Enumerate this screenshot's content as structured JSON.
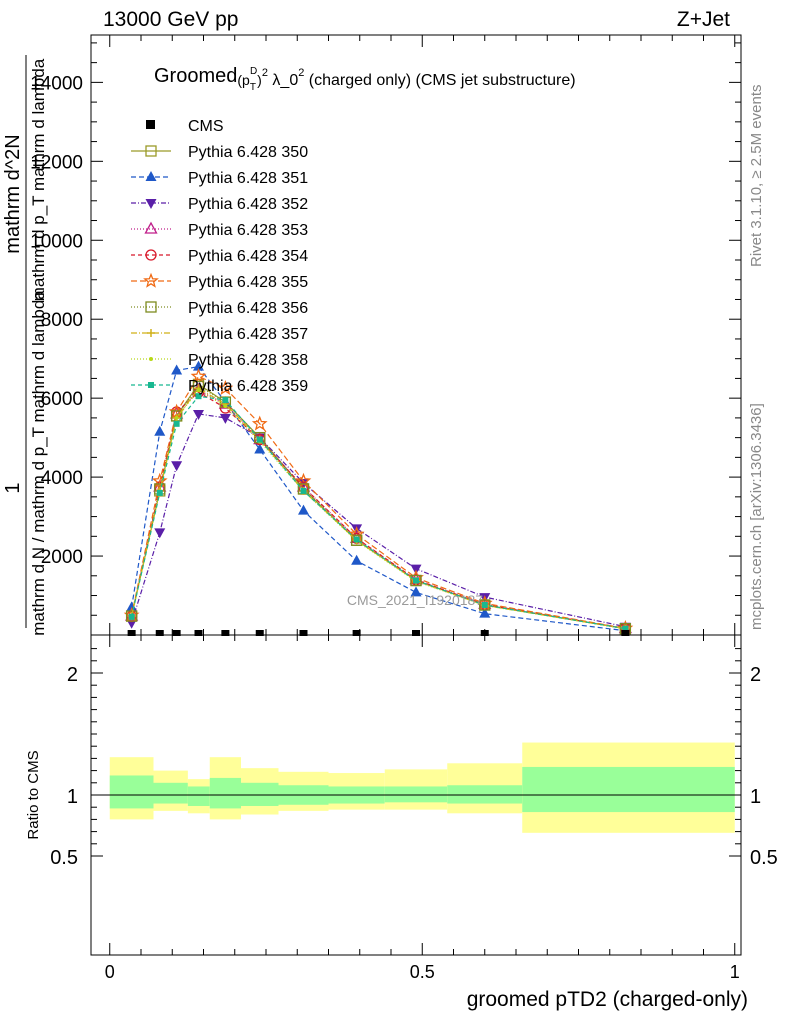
{
  "header": {
    "left": "13000 GeV pp",
    "right": "Z+Jet"
  },
  "side_labels": {
    "rivet": "Rivet 3.1.10, ≥ 2.5M events",
    "mcplots": "mcplots.cern.ch [arXiv:1306.3436]"
  },
  "watermark": "CMS_2021_I1920187",
  "chart_data": {
    "type": "line",
    "title": "Groomed (p_T^D)^2 λ_0^2  (charged only) (CMS jet substructure)",
    "title_parts": {
      "main": "Groomed",
      "p": "(p",
      "sub_T": "T",
      "sup_D": "D",
      "close": ")",
      "sup_2": "2",
      "lam": " λ_0",
      "sup_2b": "2",
      "rest": "  (charged only) (CMS jet substructure)"
    },
    "xlabel": "groomed pTD2 (charged-only)",
    "ylabel_upper_lines": [
      "1",
      "mathrm d N / mathrm d p_T mathrm d lambda",
      "mathrm d^2N",
      "mathrm d p_T mathrm d lambda"
    ],
    "ylabel_ratio": "Ratio to CMS",
    "xlim": [
      -0.03,
      1.01
    ],
    "ylim": [
      0,
      15200
    ],
    "ratio_ylim": [
      0.4,
      2.3
    ],
    "x_ticks": [
      {
        "value": 0,
        "label": "0"
      },
      {
        "value": 0.5,
        "label": "0.5"
      },
      {
        "value": 1,
        "label": "1"
      }
    ],
    "y_ticks": [
      {
        "value": 2000,
        "label": "2000"
      },
      {
        "value": 4000,
        "label": "4000"
      },
      {
        "value": 6000,
        "label": "6000"
      },
      {
        "value": 8000,
        "label": "8000"
      },
      {
        "value": 10000,
        "label": "10000"
      },
      {
        "value": 12000,
        "label": "12000"
      },
      {
        "value": 14000,
        "label": "14000"
      }
    ],
    "ratio_ticks": [
      {
        "value": 0.5,
        "label": "0.5"
      },
      {
        "value": 1,
        "label": "1"
      },
      {
        "value": 2,
        "label": "2"
      }
    ],
    "x": [
      0.035,
      0.08,
      0.107,
      0.142,
      0.185,
      0.24,
      0.31,
      0.395,
      0.49,
      0.6,
      0.825
    ],
    "bin_edges": [
      0.0,
      0.07,
      0.09,
      0.125,
      0.16,
      0.21,
      0.27,
      0.35,
      0.44,
      0.54,
      0.66,
      1.0
    ],
    "cms": {
      "name": "CMS",
      "values": [
        0,
        0,
        0,
        0,
        0,
        0,
        0,
        0,
        0,
        0,
        0
      ],
      "ratio_band_inner": [
        [
          0.89,
          1.16
        ],
        [
          0.93,
          1.1
        ],
        [
          0.93,
          1.1
        ],
        [
          0.91,
          1.07
        ],
        [
          0.89,
          1.14
        ],
        [
          0.91,
          1.1
        ],
        [
          0.92,
          1.08
        ],
        [
          0.93,
          1.07
        ],
        [
          0.94,
          1.07
        ],
        [
          0.93,
          1.08
        ],
        [
          0.86,
          1.23
        ]
      ],
      "ratio_band_outer": [
        [
          0.8,
          1.31
        ],
        [
          0.87,
          1.2
        ],
        [
          0.87,
          1.2
        ],
        [
          0.85,
          1.13
        ],
        [
          0.8,
          1.31
        ],
        [
          0.84,
          1.22
        ],
        [
          0.87,
          1.19
        ],
        [
          0.88,
          1.18
        ],
        [
          0.88,
          1.21
        ],
        [
          0.85,
          1.26
        ],
        [
          0.69,
          1.43
        ]
      ]
    },
    "legend_position": "top-left",
    "series": [
      {
        "name": "Pythia 6.428 350",
        "color": "#9a9a28",
        "dash": "",
        "marker": "square-open",
        "values": [
          480,
          3650,
          5550,
          6350,
          5900,
          5000,
          3700,
          2400,
          1380,
          760,
          160
        ]
      },
      {
        "name": "Pythia 6.428 351",
        "color": "#1f58c8",
        "dash": "5,3",
        "marker": "triangle-up",
        "values": [
          700,
          5150,
          6700,
          6800,
          5900,
          4700,
          3150,
          1880,
          1080,
          540,
          110
        ]
      },
      {
        "name": "Pythia 6.428 352",
        "color": "#5a1fa8",
        "dash": "5,2,1,2",
        "marker": "triangle-down",
        "values": [
          310,
          2600,
          4300,
          5600,
          5500,
          5000,
          3850,
          2700,
          1680,
          960,
          210
        ]
      },
      {
        "name": "Pythia 6.428 353",
        "color": "#c01f8a",
        "dash": "1,2",
        "marker": "triangle-open",
        "values": [
          480,
          3750,
          5600,
          6200,
          5850,
          4950,
          3750,
          2450,
          1400,
          780,
          165
        ]
      },
      {
        "name": "Pythia 6.428 354",
        "color": "#d8182a",
        "dash": "4,3",
        "marker": "circle-open",
        "values": [
          470,
          3750,
          5650,
          6150,
          5750,
          4950,
          3750,
          2450,
          1400,
          770,
          165
        ]
      },
      {
        "name": "Pythia 6.428 355",
        "color": "#f06a14",
        "dash": "6,3",
        "marker": "star-open",
        "values": [
          500,
          3900,
          5650,
          6550,
          6250,
          5350,
          3900,
          2550,
          1450,
          800,
          170
        ]
      },
      {
        "name": "Pythia 6.428 356",
        "color": "#7e8c20",
        "dash": "1,2",
        "marker": "square-open",
        "values": [
          480,
          3700,
          5550,
          6300,
          5900,
          5000,
          3700,
          2400,
          1380,
          760,
          160
        ]
      },
      {
        "name": "Pythia 6.428 357",
        "color": "#d0b018",
        "dash": "6,2,1,2",
        "marker": "y-star",
        "values": [
          480,
          3650,
          5500,
          6250,
          5850,
          4950,
          3650,
          2400,
          1370,
          750,
          160
        ]
      },
      {
        "name": "Pythia 6.428 358",
        "color": "#b8d818",
        "dash": "1,2",
        "marker": "dot",
        "values": [
          470,
          3650,
          5500,
          6200,
          5800,
          4900,
          3650,
          2380,
          1360,
          750,
          158
        ]
      },
      {
        "name": "Pythia 6.428 359",
        "color": "#18b890",
        "dash": "4,3",
        "marker": "square-filled",
        "values": [
          460,
          3600,
          5350,
          6050,
          5950,
          4950,
          3650,
          2420,
          1380,
          760,
          160
        ]
      }
    ]
  }
}
